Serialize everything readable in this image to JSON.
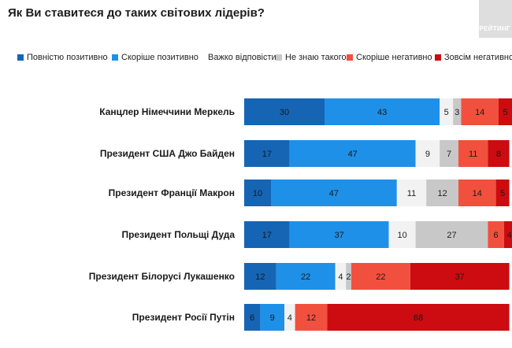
{
  "title": "Як Ви ставитеся до таких світових лідерів?",
  "brand": "РЕЙТИНГ",
  "chart_data": {
    "type": "bar",
    "orientation": "horizontal",
    "stacked": true,
    "title": "Як Ви ставитеся до таких світових лідерів?",
    "legend_position": "top",
    "grid": false,
    "xlim": [
      0,
      100
    ],
    "categories": [
      "Канцлер Німеччини Меркель",
      "Президент США Джо Байден",
      "Президент Франції Макрон",
      "Президент Польщі Дуда",
      "Президент Білорусі Лукашенко",
      "Президент Росії Путін"
    ],
    "series": [
      {
        "name": "Повністю позитивно",
        "color": "#1565b4",
        "values": [
          30,
          17,
          10,
          17,
          12,
          6
        ]
      },
      {
        "name": "Скоріше позитивно",
        "color": "#1e90e8",
        "values": [
          43,
          47,
          47,
          37,
          22,
          9
        ]
      },
      {
        "name": "Важко відповісти",
        "color": "#f2f2f2",
        "values": [
          5,
          9,
          11,
          10,
          4,
          4
        ]
      },
      {
        "name": "Не знаю такого",
        "color": "#c8c8c8",
        "values": [
          3,
          7,
          12,
          27,
          2,
          0
        ]
      },
      {
        "name": "Скоріше негативно",
        "color": "#f2503e",
        "values": [
          14,
          11,
          14,
          6,
          22,
          12
        ]
      },
      {
        "name": "Зовсім негативно",
        "color": "#cc0c10",
        "values": [
          5,
          8,
          5,
          4,
          37,
          68
        ]
      }
    ]
  }
}
